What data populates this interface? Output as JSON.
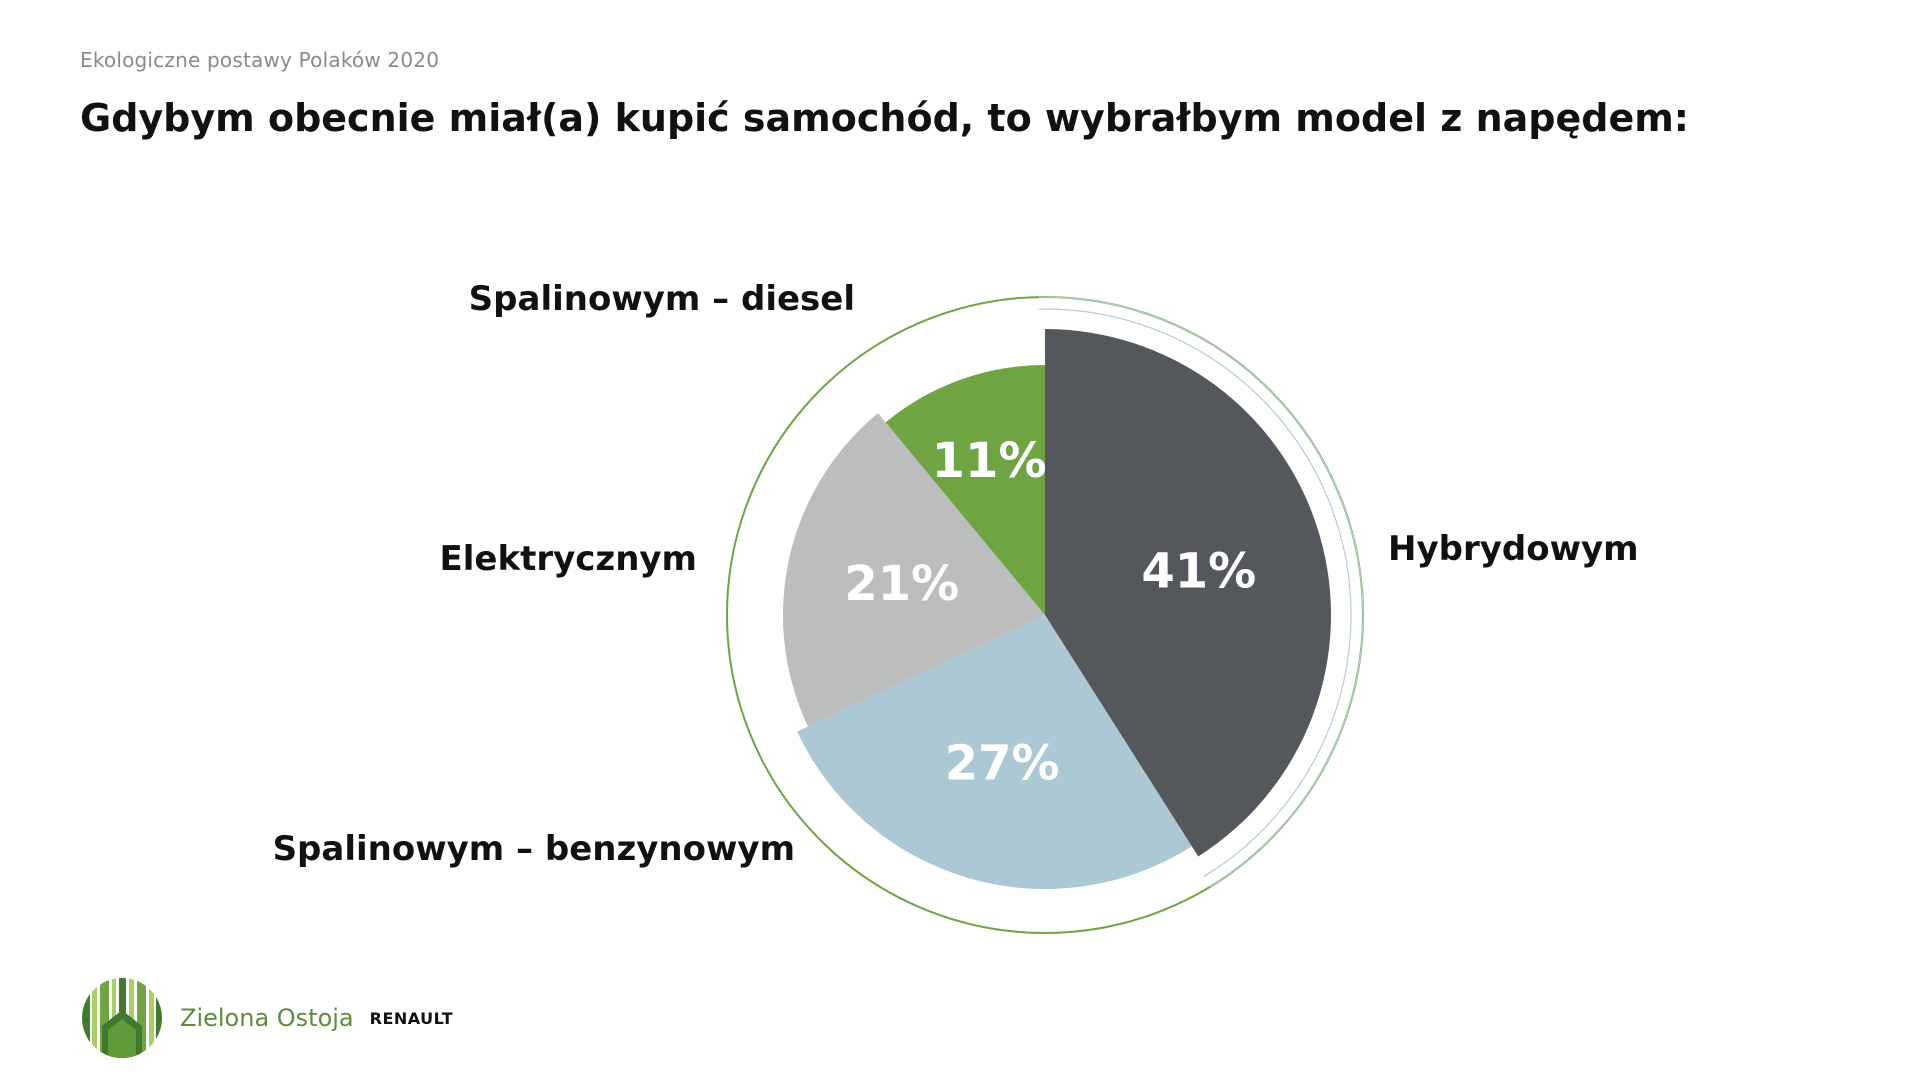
{
  "header": {
    "supertitle": "Ekologiczne postawy Polaków 2020",
    "title": "Gdybym obecnie miał(a) kupić samochód, to wybrałbym model z napędem:"
  },
  "chart_data": {
    "type": "pie",
    "title": "Gdybym obecnie miał(a) kupić samochód, to wybrałbym model z napędem:",
    "unit": "%",
    "slices": [
      {
        "label": "Hybrydowym",
        "value": 41,
        "value_label": "41%",
        "color": "#54575b"
      },
      {
        "label": "Spalinowym – benzynowym",
        "value": 27,
        "value_label": "27%",
        "color": "#abc8d4"
      },
      {
        "label": "Elektrycznym",
        "value": 21,
        "value_label": "21%",
        "color": "#bcbdbd"
      },
      {
        "label": "Spalinowym – diesel",
        "value": 11,
        "value_label": "11%",
        "color": "#6fa443"
      }
    ],
    "start_angle": "12 o'clock",
    "direction": "clockwise",
    "outer_ring_color": "#6fa443",
    "inner_ring_color": "#b7cdd6"
  },
  "footer": {
    "brand_name": "Zielona Ostoja",
    "partner_name": "RENAULT",
    "logo_icon": "forest-logo-icon",
    "colors": {
      "dark_green": "#3f7a2e",
      "light_green": "#a9cf63",
      "mid_green": "#6fa443"
    }
  }
}
